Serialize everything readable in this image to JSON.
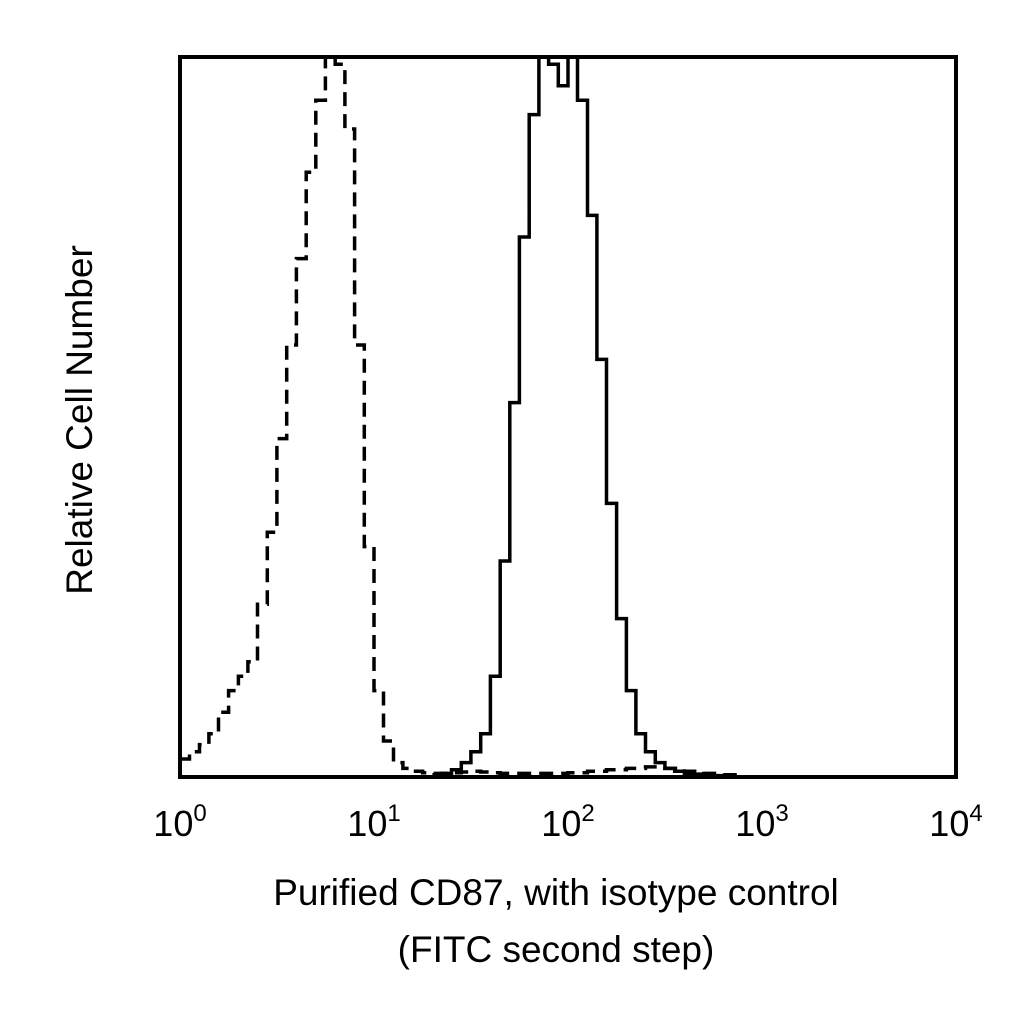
{
  "chart_data": {
    "type": "line",
    "xlabel_line1": "Purified CD87, with isotype control",
    "xlabel_line2": "(FITC second step)",
    "ylabel": "Relative Cell Number",
    "x_scale": "log",
    "xlim": [
      1,
      10000
    ],
    "ylim": [
      0,
      100
    ],
    "grid": false,
    "x_ticks": [
      {
        "base": "10",
        "exp": "0",
        "value": 1
      },
      {
        "base": "10",
        "exp": "1",
        "value": 10
      },
      {
        "base": "10",
        "exp": "2",
        "value": 100
      },
      {
        "base": "10",
        "exp": "3",
        "value": 1000
      },
      {
        "base": "10",
        "exp": "4",
        "value": 10000
      }
    ],
    "series": [
      {
        "style": "dashed",
        "color": "#000000",
        "x": [
          1.0,
          1.12,
          1.26,
          1.41,
          1.58,
          1.78,
          2.0,
          2.24,
          2.51,
          2.82,
          3.16,
          3.55,
          3.98,
          4.47,
          5.01,
          5.62,
          6.31,
          7.08,
          7.94,
          8.91,
          10.0,
          11.2,
          12.6,
          14.1,
          15.8,
          17.8,
          20.0,
          22.4,
          25.1,
          28.2,
          31.6,
          35.5,
          39.8,
          44.7,
          50.1,
          56.2,
          63.1,
          70.8,
          79.4,
          89.1,
          100.0,
          126,
          158,
          200,
          251,
          316,
          398,
          501,
          631,
          794
        ],
        "y": [
          2.5,
          3.5,
          4.5,
          6,
          9,
          12,
          14,
          16,
          24,
          34,
          47,
          60,
          72,
          84,
          94,
          100,
          99,
          90,
          60,
          32,
          12,
          5,
          2,
          1.2,
          0.8,
          0.6,
          0.5,
          0.5,
          0.6,
          0.7,
          0.8,
          0.7,
          0.6,
          0.5,
          0.5,
          0.5,
          0.5,
          0.5,
          0.5,
          0.5,
          0.6,
          0.8,
          1.0,
          1.2,
          1.4,
          1.2,
          0.8,
          0.5,
          0.3,
          0
        ]
      },
      {
        "style": "solid",
        "color": "#000000",
        "x": [
          20.0,
          22.4,
          25.1,
          28.2,
          31.6,
          35.5,
          39.8,
          44.7,
          50.1,
          56.2,
          63.1,
          70.8,
          79.4,
          89.1,
          100.0,
          112,
          126,
          141,
          158,
          178,
          200,
          224,
          251,
          282,
          316,
          355,
          398,
          447,
          501,
          562,
          631
        ],
        "y": [
          0.3,
          0.5,
          1.0,
          2.0,
          3.5,
          6,
          14,
          30,
          52,
          75,
          92,
          100,
          99,
          96,
          100,
          94,
          78,
          58,
          38,
          22,
          12,
          6,
          3.5,
          2.0,
          1.2,
          0.8,
          0.5,
          0.4,
          0.3,
          0.2,
          0
        ]
      }
    ]
  }
}
